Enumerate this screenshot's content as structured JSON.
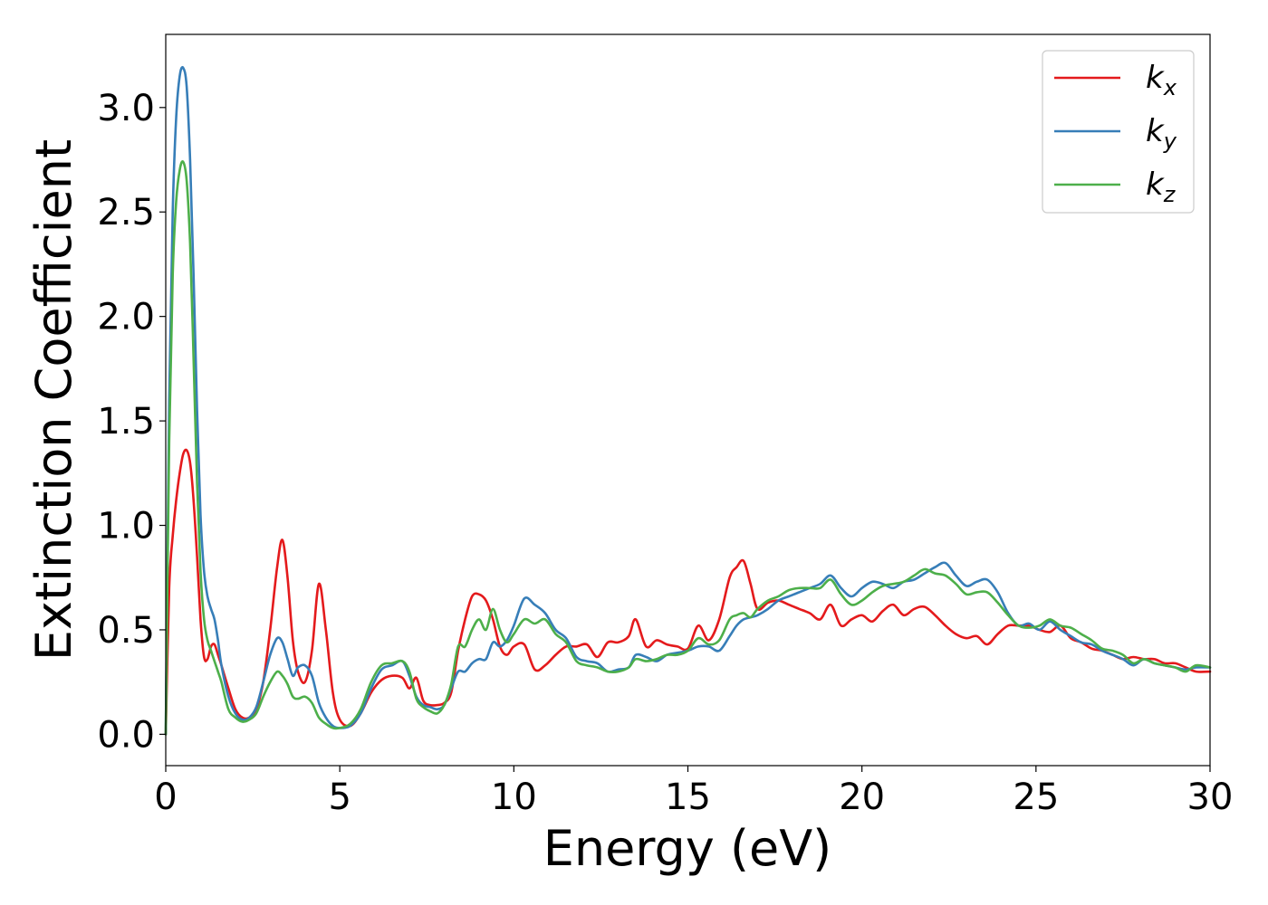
{
  "chart_data": {
    "type": "line",
    "xlabel": "Energy (eV)",
    "ylabel": "Extinction Coefficient",
    "xlim": [
      0,
      30
    ],
    "ylim": [
      -0.15,
      3.35
    ],
    "xticks": [
      0,
      5,
      10,
      15,
      20,
      25,
      30
    ],
    "xtick_labels": [
      "0",
      "5",
      "10",
      "15",
      "20",
      "25",
      "30"
    ],
    "yticks": [
      0.0,
      0.5,
      1.0,
      1.5,
      2.0,
      2.5,
      3.0
    ],
    "ytick_labels": [
      "0.0",
      "0.5",
      "1.0",
      "1.5",
      "2.0",
      "2.5",
      "3.0"
    ],
    "grid": false,
    "legend_position": "top-right",
    "series": [
      {
        "name": "k",
        "subscript": "x",
        "color": "#e41a1c",
        "x": [
          0,
          0.1,
          0.2,
          0.3,
          0.4,
          0.5,
          0.6,
          0.7,
          0.8,
          0.9,
          1.0,
          1.1,
          1.2,
          1.3,
          1.4,
          1.5,
          1.6,
          1.8,
          2.0,
          2.2,
          2.4,
          2.6,
          2.8,
          3.0,
          3.2,
          3.35,
          3.5,
          3.65,
          3.8,
          4.0,
          4.2,
          4.4,
          4.6,
          4.8,
          5.0,
          5.3,
          5.6,
          5.9,
          6.2,
          6.5,
          6.8,
          7.0,
          7.2,
          7.4,
          7.6,
          7.8,
          8.0,
          8.2,
          8.4,
          8.6,
          8.8,
          9.0,
          9.2,
          9.4,
          9.6,
          9.8,
          10.0,
          10.3,
          10.6,
          10.9,
          11.2,
          11.5,
          11.8,
          12.1,
          12.4,
          12.7,
          13.0,
          13.3,
          13.5,
          13.8,
          14.1,
          14.4,
          14.7,
          15.0,
          15.3,
          15.6,
          15.9,
          16.2,
          16.4,
          16.6,
          16.8,
          17.0,
          17.3,
          17.6,
          17.9,
          18.2,
          18.5,
          18.8,
          19.1,
          19.4,
          19.7,
          20.0,
          20.3,
          20.6,
          20.9,
          21.2,
          21.5,
          21.8,
          22.1,
          22.4,
          22.7,
          23.0,
          23.3,
          23.6,
          23.9,
          24.2,
          24.5,
          24.8,
          25.1,
          25.4,
          25.7,
          26.0,
          26.3,
          26.6,
          26.9,
          27.2,
          27.5,
          27.8,
          28.1,
          28.4,
          28.7,
          29.0,
          29.3,
          29.6,
          30.0
        ],
        "y": [
          0.0,
          0.7,
          0.95,
          1.12,
          1.25,
          1.34,
          1.36,
          1.3,
          1.12,
          0.85,
          0.55,
          0.37,
          0.36,
          0.42,
          0.43,
          0.38,
          0.33,
          0.22,
          0.12,
          0.08,
          0.08,
          0.12,
          0.25,
          0.5,
          0.8,
          0.93,
          0.75,
          0.45,
          0.3,
          0.25,
          0.4,
          0.72,
          0.5,
          0.2,
          0.07,
          0.04,
          0.1,
          0.2,
          0.26,
          0.28,
          0.27,
          0.22,
          0.27,
          0.16,
          0.14,
          0.14,
          0.15,
          0.2,
          0.4,
          0.55,
          0.66,
          0.67,
          0.64,
          0.55,
          0.42,
          0.38,
          0.42,
          0.43,
          0.31,
          0.33,
          0.38,
          0.42,
          0.42,
          0.43,
          0.37,
          0.44,
          0.44,
          0.47,
          0.55,
          0.42,
          0.45,
          0.43,
          0.42,
          0.41,
          0.52,
          0.45,
          0.55,
          0.75,
          0.8,
          0.83,
          0.72,
          0.6,
          0.63,
          0.64,
          0.62,
          0.6,
          0.58,
          0.55,
          0.62,
          0.52,
          0.55,
          0.57,
          0.54,
          0.59,
          0.62,
          0.57,
          0.6,
          0.61,
          0.57,
          0.52,
          0.48,
          0.46,
          0.47,
          0.43,
          0.48,
          0.52,
          0.52,
          0.52,
          0.5,
          0.49,
          0.52,
          0.46,
          0.44,
          0.41,
          0.4,
          0.38,
          0.36,
          0.37,
          0.36,
          0.36,
          0.34,
          0.34,
          0.32,
          0.3,
          0.3
        ]
      },
      {
        "name": "k",
        "subscript": "y",
        "color": "#377eb8",
        "x": [
          0,
          0.1,
          0.2,
          0.3,
          0.4,
          0.5,
          0.6,
          0.7,
          0.8,
          0.9,
          1.0,
          1.1,
          1.2,
          1.3,
          1.4,
          1.5,
          1.6,
          1.8,
          2.0,
          2.2,
          2.4,
          2.6,
          2.8,
          3.0,
          3.2,
          3.35,
          3.5,
          3.65,
          3.8,
          4.0,
          4.2,
          4.4,
          4.6,
          4.8,
          5.0,
          5.3,
          5.6,
          5.9,
          6.2,
          6.5,
          6.8,
          7.0,
          7.2,
          7.4,
          7.6,
          7.8,
          8.0,
          8.2,
          8.4,
          8.6,
          8.8,
          9.0,
          9.2,
          9.4,
          9.6,
          9.8,
          10.0,
          10.3,
          10.6,
          10.9,
          11.2,
          11.5,
          11.8,
          12.1,
          12.4,
          12.7,
          13.0,
          13.3,
          13.5,
          13.8,
          14.1,
          14.4,
          14.7,
          15.0,
          15.3,
          15.6,
          15.9,
          16.2,
          16.4,
          16.6,
          16.8,
          17.0,
          17.3,
          17.6,
          17.9,
          18.2,
          18.5,
          18.8,
          19.1,
          19.4,
          19.7,
          20.0,
          20.3,
          20.6,
          20.9,
          21.2,
          21.5,
          21.8,
          22.1,
          22.4,
          22.7,
          23.0,
          23.3,
          23.6,
          23.9,
          24.2,
          24.5,
          24.8,
          25.1,
          25.4,
          25.7,
          26.0,
          26.3,
          26.6,
          26.9,
          27.2,
          27.5,
          27.8,
          28.1,
          28.4,
          28.7,
          29.0,
          29.3,
          29.6,
          30.0
        ],
        "y": [
          0.0,
          1.6,
          2.5,
          2.95,
          3.15,
          3.19,
          3.1,
          2.75,
          2.2,
          1.55,
          1.05,
          0.78,
          0.66,
          0.6,
          0.55,
          0.45,
          0.33,
          0.18,
          0.1,
          0.07,
          0.08,
          0.13,
          0.25,
          0.38,
          0.46,
          0.44,
          0.36,
          0.28,
          0.32,
          0.33,
          0.28,
          0.15,
          0.08,
          0.04,
          0.03,
          0.04,
          0.1,
          0.22,
          0.31,
          0.33,
          0.35,
          0.28,
          0.18,
          0.14,
          0.13,
          0.12,
          0.14,
          0.22,
          0.3,
          0.3,
          0.34,
          0.36,
          0.36,
          0.44,
          0.42,
          0.45,
          0.52,
          0.65,
          0.62,
          0.58,
          0.5,
          0.46,
          0.37,
          0.35,
          0.34,
          0.3,
          0.31,
          0.32,
          0.38,
          0.37,
          0.35,
          0.38,
          0.39,
          0.4,
          0.42,
          0.42,
          0.4,
          0.47,
          0.52,
          0.55,
          0.56,
          0.57,
          0.6,
          0.64,
          0.66,
          0.68,
          0.7,
          0.72,
          0.76,
          0.7,
          0.66,
          0.7,
          0.73,
          0.72,
          0.7,
          0.73,
          0.74,
          0.77,
          0.8,
          0.82,
          0.76,
          0.71,
          0.73,
          0.74,
          0.68,
          0.58,
          0.52,
          0.53,
          0.5,
          0.54,
          0.5,
          0.47,
          0.44,
          0.43,
          0.4,
          0.38,
          0.36,
          0.33,
          0.36,
          0.34,
          0.33,
          0.32,
          0.31,
          0.32,
          0.32
        ]
      },
      {
        "name": "k",
        "subscript": "z",
        "color": "#4daf4a",
        "x": [
          0,
          0.1,
          0.2,
          0.3,
          0.4,
          0.5,
          0.6,
          0.7,
          0.8,
          0.9,
          1.0,
          1.1,
          1.2,
          1.3,
          1.4,
          1.5,
          1.6,
          1.8,
          2.0,
          2.2,
          2.4,
          2.6,
          2.8,
          3.0,
          3.2,
          3.35,
          3.5,
          3.65,
          3.8,
          4.0,
          4.2,
          4.4,
          4.6,
          4.8,
          5.0,
          5.3,
          5.6,
          5.9,
          6.2,
          6.5,
          6.8,
          7.0,
          7.2,
          7.4,
          7.6,
          7.8,
          8.0,
          8.2,
          8.4,
          8.6,
          8.8,
          9.0,
          9.2,
          9.4,
          9.6,
          9.8,
          10.0,
          10.3,
          10.6,
          10.9,
          11.2,
          11.5,
          11.8,
          12.1,
          12.4,
          12.7,
          13.0,
          13.3,
          13.5,
          13.8,
          14.1,
          14.4,
          14.7,
          15.0,
          15.3,
          15.6,
          15.9,
          16.2,
          16.4,
          16.6,
          16.8,
          17.0,
          17.3,
          17.6,
          17.9,
          18.2,
          18.5,
          18.8,
          19.1,
          19.4,
          19.7,
          20.0,
          20.3,
          20.6,
          20.9,
          21.2,
          21.5,
          21.8,
          22.1,
          22.4,
          22.7,
          23.0,
          23.3,
          23.6,
          23.9,
          24.2,
          24.5,
          24.8,
          25.1,
          25.4,
          25.7,
          26.0,
          26.3,
          26.6,
          26.9,
          27.2,
          27.5,
          27.8,
          28.1,
          28.4,
          28.7,
          29.0,
          29.3,
          29.6,
          30.0
        ],
        "y": [
          0.0,
          1.4,
          2.2,
          2.55,
          2.7,
          2.74,
          2.65,
          2.35,
          1.8,
          1.2,
          0.78,
          0.55,
          0.45,
          0.4,
          0.35,
          0.3,
          0.25,
          0.12,
          0.08,
          0.06,
          0.07,
          0.1,
          0.18,
          0.25,
          0.3,
          0.28,
          0.24,
          0.18,
          0.17,
          0.18,
          0.15,
          0.08,
          0.05,
          0.03,
          0.03,
          0.05,
          0.12,
          0.25,
          0.33,
          0.34,
          0.35,
          0.3,
          0.17,
          0.13,
          0.11,
          0.1,
          0.14,
          0.24,
          0.42,
          0.42,
          0.5,
          0.55,
          0.5,
          0.6,
          0.5,
          0.44,
          0.48,
          0.55,
          0.53,
          0.55,
          0.48,
          0.44,
          0.35,
          0.33,
          0.32,
          0.3,
          0.3,
          0.32,
          0.36,
          0.35,
          0.36,
          0.38,
          0.38,
          0.4,
          0.46,
          0.43,
          0.45,
          0.55,
          0.57,
          0.58,
          0.56,
          0.6,
          0.64,
          0.66,
          0.69,
          0.7,
          0.7,
          0.7,
          0.74,
          0.67,
          0.62,
          0.64,
          0.68,
          0.71,
          0.72,
          0.73,
          0.76,
          0.79,
          0.77,
          0.76,
          0.72,
          0.67,
          0.68,
          0.68,
          0.63,
          0.57,
          0.52,
          0.51,
          0.52,
          0.55,
          0.52,
          0.51,
          0.48,
          0.45,
          0.41,
          0.4,
          0.38,
          0.34,
          0.36,
          0.34,
          0.33,
          0.32,
          0.3,
          0.33,
          0.32
        ]
      }
    ]
  }
}
